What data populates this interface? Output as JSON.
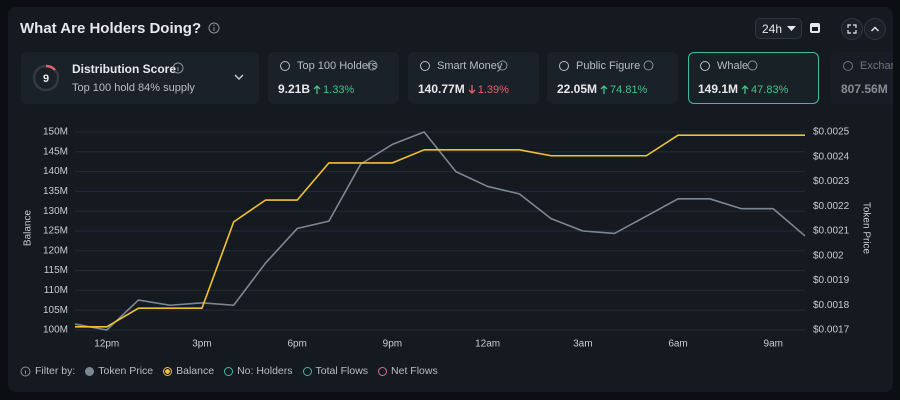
{
  "header": {
    "title": "What Are Holders Doing?",
    "timeframe": "24h"
  },
  "score_card": {
    "score": "9",
    "title": "Distribution Score",
    "subtitle": "Top 100 hold 84% supply"
  },
  "cards": [
    {
      "label": "Top 100 Holders",
      "value": "9.21B",
      "change": "1.33%",
      "direction": "up"
    },
    {
      "label": "Smart Money",
      "value": "140.77M",
      "change": "1.39%",
      "direction": "down"
    },
    {
      "label": "Public Figure",
      "value": "22.05M",
      "change": "74.81%",
      "direction": "up"
    },
    {
      "label": "Whale",
      "value": "149.1M",
      "change": "47.83%",
      "direction": "up",
      "selected": true
    },
    {
      "label": "Exchange",
      "value": "807.56M"
    }
  ],
  "chart_data": {
    "type": "line",
    "ylabel": "Balance",
    "y2label": "Token Price",
    "categories": [
      null,
      "12pm",
      null,
      null,
      "3pm",
      null,
      null,
      "6pm",
      null,
      null,
      "9pm",
      null,
      null,
      "12am",
      null,
      null,
      "3am",
      null,
      null,
      "6am",
      null,
      null,
      "9am",
      null
    ],
    "ylim": [
      100000000,
      150000000
    ],
    "yticks": [
      {
        "value": 100000000,
        "label": "100M"
      },
      {
        "value": 105000000,
        "label": "105M"
      },
      {
        "value": 110000000,
        "label": "110M"
      },
      {
        "value": 115000000,
        "label": "115M"
      },
      {
        "value": 120000000,
        "label": "120M"
      },
      {
        "value": 125000000,
        "label": "125M"
      },
      {
        "value": 130000000,
        "label": "130M"
      },
      {
        "value": 135000000,
        "label": "135M"
      },
      {
        "value": 140000000,
        "label": "140M"
      },
      {
        "value": 145000000,
        "label": "145M"
      },
      {
        "value": 150000000,
        "label": "150M"
      }
    ],
    "y2lim": [
      0.0017,
      0.0025
    ],
    "y2ticks": [
      {
        "value": 0.0017,
        "label": "$0.0017"
      },
      {
        "value": 0.0018,
        "label": "$0.0018"
      },
      {
        "value": 0.0019,
        "label": "$0.0019"
      },
      {
        "value": 0.002,
        "label": "$0.002"
      },
      {
        "value": 0.0021,
        "label": "$0.0021"
      },
      {
        "value": 0.0022,
        "label": "$0.0022"
      },
      {
        "value": 0.0023,
        "label": "$0.0023"
      },
      {
        "value": 0.0024,
        "label": "$0.0024"
      },
      {
        "value": 0.0025,
        "label": "$0.0025"
      }
    ],
    "grid": true,
    "series": [
      {
        "name": "Token Price",
        "color": "#7d8792",
        "axis": "y2",
        "values": [
          0.001724,
          0.0017,
          0.001821,
          0.0018,
          0.00181,
          0.0018,
          0.00197,
          0.00211,
          0.00214,
          0.00237,
          0.00245,
          0.0025,
          0.00234,
          0.00228,
          0.00225,
          0.00215,
          0.0021,
          0.00209,
          0.00216,
          0.00223,
          0.00223,
          0.00219,
          0.00219,
          0.00208
        ]
      },
      {
        "name": "Balance",
        "color": "#f2c230",
        "values": [
          100800000,
          100800000,
          105500000,
          105500000,
          105500000,
          127300000,
          132800000,
          132800000,
          142200000,
          142200000,
          142200000,
          145500000,
          145500000,
          145500000,
          145500000,
          144000000,
          144000000,
          144000000,
          144000000,
          149200000,
          149200000,
          149200000,
          149200000,
          149200000
        ]
      }
    ]
  },
  "filters": {
    "label": "Filter by:",
    "extra": [
      {
        "name": "No: Holders",
        "color": "#3fb9a0"
      },
      {
        "name": "Total Flows",
        "color": "#3fb9a0"
      },
      {
        "name": "Net Flows",
        "color": "#d46b9a"
      }
    ]
  }
}
